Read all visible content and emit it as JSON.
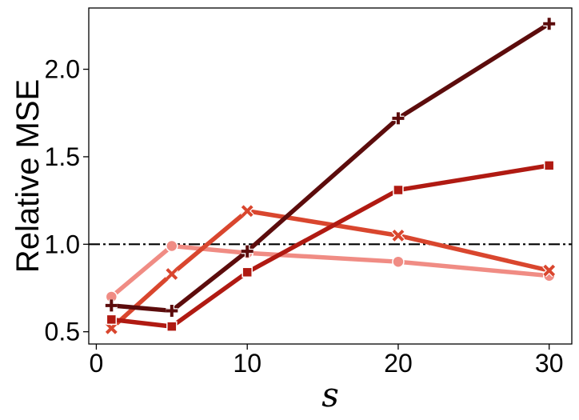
{
  "chart_data": {
    "type": "line",
    "title": "",
    "xlabel": "s",
    "ylabel": "Relative MSE",
    "xlim": [
      -0.5,
      31.5
    ],
    "ylim": [
      0.43,
      2.35
    ],
    "xticks": [
      0,
      10,
      20,
      30
    ],
    "xtick_labels": [
      "0",
      "10",
      "20",
      "30"
    ],
    "yticks": [
      0.5,
      1.0,
      1.5,
      2.0
    ],
    "ytick_labels": [
      "0.5",
      "1.0",
      "1.5",
      "2.0"
    ],
    "grid": false,
    "legend": "none",
    "reference_line": {
      "y": 1.0,
      "style": "dash-dot",
      "color": "#000000"
    },
    "x": [
      1,
      5,
      10,
      20,
      30
    ],
    "series": [
      {
        "marker": "circle",
        "color": "#f08c84",
        "values": [
          0.7,
          0.99,
          0.95,
          0.9,
          0.82
        ]
      },
      {
        "marker": "x",
        "color": "#d9462e",
        "values": [
          0.52,
          0.83,
          1.19,
          1.05,
          0.85
        ]
      },
      {
        "marker": "square",
        "color": "#b01a12",
        "values": [
          0.57,
          0.53,
          0.84,
          1.31,
          1.45
        ]
      },
      {
        "marker": "plus",
        "color": "#5c0c0c",
        "values": [
          0.65,
          0.62,
          0.96,
          1.72,
          2.26
        ]
      }
    ]
  }
}
